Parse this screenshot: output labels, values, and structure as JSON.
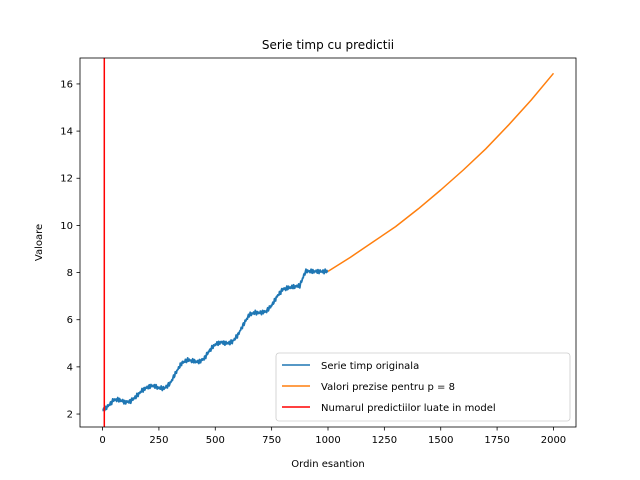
{
  "chart_data": {
    "type": "line",
    "title": "Serie timp cu predictii",
    "xlabel": "Ordin esantion",
    "ylabel": "Valoare",
    "xlim": [
      -100,
      2100
    ],
    "ylim": [
      1.45,
      17.1
    ],
    "xticks": [
      0,
      250,
      500,
      750,
      1000,
      1250,
      1500,
      1750,
      2000
    ],
    "yticks": [
      2,
      4,
      6,
      8,
      10,
      12,
      14,
      16
    ],
    "grid": false,
    "legend_position": "lower right",
    "series": [
      {
        "name": "Serie timp originala",
        "color": "#1f77b4",
        "x": [
          0,
          25,
          50,
          75,
          100,
          125,
          150,
          175,
          200,
          225,
          250,
          275,
          300,
          325,
          350,
          375,
          400,
          425,
          450,
          475,
          500,
          525,
          550,
          575,
          600,
          625,
          650,
          675,
          700,
          725,
          750,
          775,
          800,
          825,
          850,
          875,
          900,
          925,
          950,
          975,
          1000
        ],
        "y": [
          2.15,
          2.35,
          2.6,
          2.6,
          2.5,
          2.55,
          2.75,
          3.0,
          3.15,
          3.2,
          3.1,
          3.1,
          3.3,
          3.75,
          4.15,
          4.3,
          4.25,
          4.2,
          4.35,
          4.7,
          4.95,
          5.05,
          5.0,
          5.05,
          5.35,
          5.8,
          6.2,
          6.3,
          6.3,
          6.35,
          6.6,
          7.0,
          7.3,
          7.35,
          7.4,
          7.45,
          8.05,
          8.05,
          8.05,
          8.05,
          8.05
        ]
      },
      {
        "name": "Valori prezise pentru p = 8",
        "color": "#ff7f0e",
        "x": [
          1000,
          1100,
          1200,
          1300,
          1400,
          1500,
          1600,
          1700,
          1800,
          1900,
          2000
        ],
        "y": [
          8.05,
          8.65,
          9.3,
          9.95,
          10.7,
          11.5,
          12.35,
          13.25,
          14.25,
          15.3,
          16.45
        ]
      },
      {
        "name": "Numarul predictiilor luate in model",
        "color": "#ff0000",
        "x": [
          8,
          8
        ],
        "y": [
          1.45,
          17.1
        ]
      }
    ]
  }
}
